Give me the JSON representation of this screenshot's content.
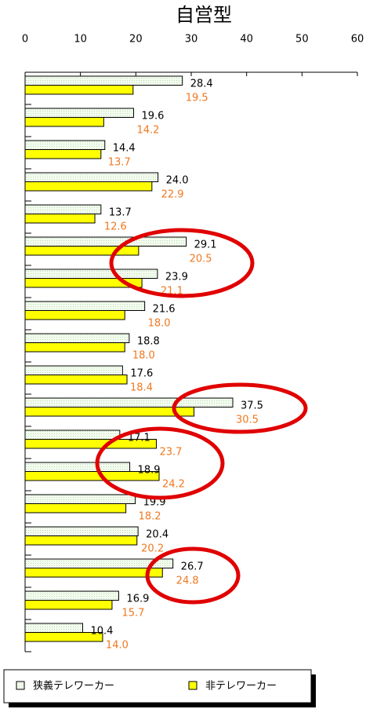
{
  "chart_data": {
    "type": "bar",
    "orientation": "horizontal",
    "title": "自営型",
    "categories": [
      null,
      null,
      null,
      null,
      null,
      null,
      null,
      null,
      null,
      null,
      null,
      null,
      null,
      null,
      null,
      null,
      null,
      null
    ],
    "series": [
      {
        "name": "狭義テレワーカー",
        "color": "#e8f8e0",
        "values": [
          28.4,
          19.6,
          14.4,
          24.0,
          13.7,
          29.1,
          23.9,
          21.6,
          18.8,
          17.6,
          37.5,
          17.1,
          18.9,
          19.9,
          20.4,
          26.7,
          16.9,
          10.4
        ],
        "value_labels": [
          "28.4",
          "19.6",
          "14.4",
          "24.0",
          "13.7",
          "29.1",
          "23.9",
          "21.6",
          "18.8",
          "17.6",
          "37.5",
          "17.1",
          "18.9",
          "19.9",
          "20.4",
          "26.7",
          "16.9",
          "10.4"
        ]
      },
      {
        "name": "非テレワーカー",
        "color": "#ffff00",
        "values": [
          19.5,
          14.2,
          13.7,
          22.9,
          12.6,
          20.5,
          21.1,
          18.0,
          18.0,
          18.4,
          30.5,
          23.7,
          24.2,
          18.2,
          20.2,
          24.8,
          15.7,
          14.0
        ],
        "value_labels": [
          "19.5",
          "14.2",
          "13.7",
          "22.9",
          "12.6",
          "20.5",
          "21.1",
          "18.0",
          "18.0",
          "18.4",
          "30.5",
          "23.7",
          "24.2",
          "18.2",
          "20.2",
          "24.8",
          "15.7",
          "14.0"
        ]
      }
    ],
    "xlim": [
      0,
      60
    ],
    "xticks": [
      0,
      10,
      20,
      30,
      40,
      50,
      60
    ]
  }
}
